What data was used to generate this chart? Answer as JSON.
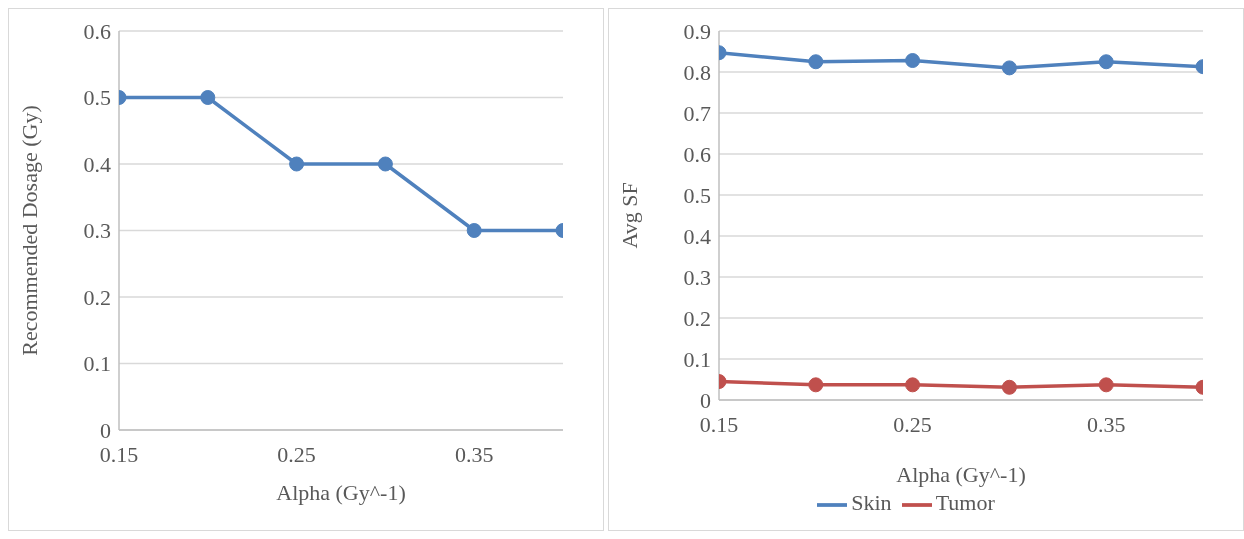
{
  "chart_data": [
    {
      "type": "line",
      "xlabel": "Alpha (Gy^-1)",
      "ylabel": "Recommended Dosage (Gy)",
      "x": [
        0.15,
        0.2,
        0.25,
        0.3,
        0.35,
        0.4
      ],
      "series": [
        {
          "color": "#4f81bd",
          "values": [
            0.5,
            0.5,
            0.4,
            0.4,
            0.3,
            0.3
          ]
        }
      ],
      "xlim": [
        0.15,
        0.4
      ],
      "xticks": [
        0.15,
        0.25,
        0.35
      ],
      "ylim": [
        0,
        0.6
      ],
      "yticks": [
        0,
        0.1,
        0.2,
        0.3,
        0.4,
        0.5,
        0.6
      ],
      "grid": "y",
      "marker": "circle",
      "legend": false
    },
    {
      "type": "line",
      "xlabel": "Alpha (Gy^-1)",
      "ylabel": "Avg SF",
      "x": [
        0.15,
        0.2,
        0.25,
        0.3,
        0.35,
        0.4
      ],
      "series": [
        {
          "name": "Skin",
          "color": "#4f81bd",
          "values": [
            0.847,
            0.825,
            0.828,
            0.81,
            0.825,
            0.813
          ]
        },
        {
          "name": "Tumor",
          "color": "#c0504d",
          "values": [
            0.045,
            0.037,
            0.037,
            0.031,
            0.037,
            0.031
          ]
        }
      ],
      "xlim": [
        0.15,
        0.4
      ],
      "xticks": [
        0.15,
        0.25,
        0.35
      ],
      "ylim": [
        0,
        0.9
      ],
      "yticks": [
        0,
        0.1,
        0.2,
        0.3,
        0.4,
        0.5,
        0.6,
        0.7,
        0.8,
        0.9
      ],
      "grid": "y",
      "marker": "circle",
      "legend": "bottom"
    }
  ]
}
